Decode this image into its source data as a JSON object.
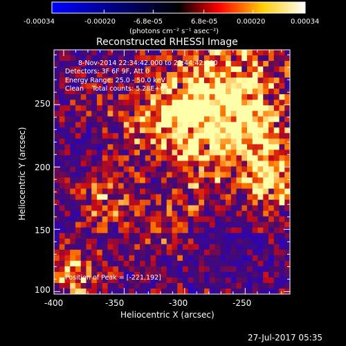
{
  "chart_data": {
    "type": "heatmap",
    "title": "Reconstructed RHESSI Image",
    "colorbar": {
      "ticks": [
        "-0.00034",
        "-0.00020",
        "-6.8e-05",
        "6.8e-05",
        "0.00020",
        "0.00034"
      ],
      "tick_values": [
        -0.00034,
        -0.0002,
        -6.8e-05,
        6.8e-05,
        0.0002,
        0.00034
      ],
      "range": [
        -0.00034,
        0.00034
      ],
      "unit_label": "(photons cm⁻² s⁻¹ asec⁻²)",
      "colormap": [
        "#0000ff",
        "#000000",
        "#ff0000",
        "#ffff00",
        "#ffffff"
      ]
    },
    "xlabel": "Heliocentric X (arcsec)",
    "ylabel": "Heliocentric Y (arcsec)",
    "xlim": [
      -408,
      -213
    ],
    "ylim": [
      98,
      294
    ],
    "xticks": [
      -400,
      -350,
      -300,
      -250
    ],
    "yticks": [
      100,
      150,
      200,
      250
    ],
    "annotations": [
      "8-Nov-2014 22:34:42.000 to 22:44:42.000",
      "Detectors: 3F 6F 9F, Att 0",
      "Energy Range: 25.0 - 50.0 keV",
      "Clean    Total counts: 5.28E+03"
    ],
    "peak_label": "Position of Peak = [-221,192]",
    "peak_position": [
      -221,
      192
    ],
    "footer_date": "27-Jul-2017 05:35"
  }
}
